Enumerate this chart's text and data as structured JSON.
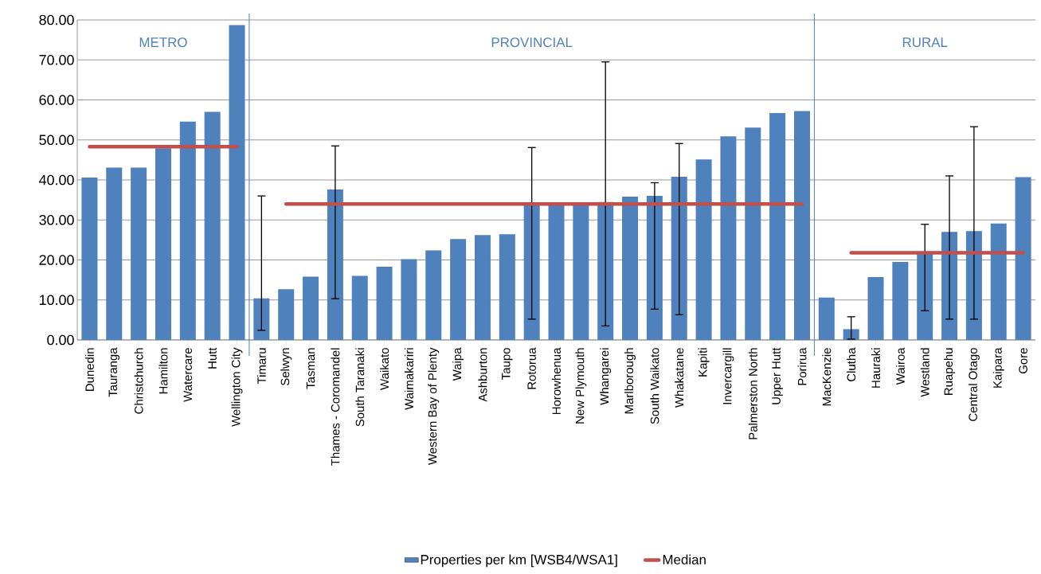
{
  "chart_data": {
    "type": "bar",
    "categories": [
      "Dunedin",
      "Tauranga",
      "Christchurch",
      "Hamilton",
      "Watercare",
      "Hutt",
      "Wellington City",
      "Timaru",
      "Selwyn",
      "Tasman",
      "Thames - Coromandel",
      "South Taranaki",
      "Waikato",
      "Waimakariri",
      "Western Bay of Plenty",
      "Waipa",
      "Ashburton",
      "Taupo",
      "Rotorua",
      "Horowhenua",
      "New Plymouth",
      "Whangarei",
      "Marlborough",
      "South Waikato",
      "Whakatane",
      "Kapiti",
      "Invercargill",
      "Palmerston North",
      "Upper Hutt",
      "Porirua",
      "MacKenzie",
      "Clutha",
      "Hauraki",
      "Wairoa",
      "Westland",
      "Ruapehu",
      "Central Otago",
      "Kaipara",
      "Gore"
    ],
    "series": [
      {
        "name": "Properties per km [WSB4/WSA1]",
        "color": "#4f81bd",
        "values": [
          40.6,
          43.1,
          43.1,
          47.9,
          54.6,
          57.0,
          78.7,
          10.4,
          12.7,
          15.8,
          37.6,
          16.0,
          18.3,
          20.2,
          22.4,
          25.2,
          26.2,
          26.4,
          34.0,
          34.0,
          34.0,
          34.5,
          35.8,
          36.0,
          40.8,
          45.1,
          50.9,
          53.1,
          56.7,
          57.2,
          10.6,
          2.7,
          15.7,
          19.5,
          21.5,
          27.0,
          27.2,
          29.1,
          40.7
        ],
        "errors": [
          null,
          null,
          null,
          null,
          null,
          null,
          null,
          [
            2.4,
            36.0
          ],
          null,
          null,
          [
            10.3,
            48.5
          ],
          null,
          null,
          null,
          null,
          null,
          null,
          null,
          [
            5.2,
            48.1
          ],
          null,
          null,
          [
            3.5,
            69.5
          ],
          null,
          [
            7.7,
            39.3
          ],
          [
            6.3,
            49.1
          ],
          null,
          null,
          null,
          null,
          null,
          null,
          [
            0.2,
            5.8
          ],
          null,
          null,
          [
            7.3,
            28.9
          ],
          [
            5.2,
            41.0
          ],
          [
            5.2,
            53.3
          ],
          null,
          null
        ]
      },
      {
        "name": "Median",
        "type": "line",
        "color": "#c0504d",
        "values": [
          48.3,
          48.3,
          48.3,
          48.3,
          48.3,
          48.3,
          48.3,
          null,
          34.0,
          34.0,
          34.0,
          34.0,
          34.0,
          34.0,
          34.0,
          34.0,
          34.0,
          34.0,
          34.0,
          34.0,
          34.0,
          34.0,
          34.0,
          34.0,
          34.0,
          34.0,
          34.0,
          34.0,
          34.0,
          34.0,
          null,
          21.8,
          21.8,
          21.8,
          21.8,
          21.8,
          21.8,
          21.8,
          21.8
        ]
      }
    ],
    "ylim": [
      0,
      80
    ],
    "yticks": [
      {
        "value": 0,
        "label": "0.00"
      },
      {
        "value": 10,
        "label": "10.00"
      },
      {
        "value": 20,
        "label": "20.00"
      },
      {
        "value": 30,
        "label": "30.00"
      },
      {
        "value": 40,
        "label": "40.00"
      },
      {
        "value": 50,
        "label": "50.00"
      },
      {
        "value": 60,
        "label": "60.00"
      },
      {
        "value": 70,
        "label": "70.00"
      },
      {
        "value": 80,
        "label": "80.00"
      }
    ],
    "grid": "y",
    "legend": "bottom",
    "annotations": [
      "METRO",
      "PROVINCIAL",
      "RURAL"
    ]
  }
}
